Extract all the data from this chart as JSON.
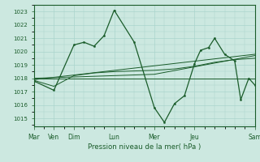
{
  "xlabel": "Pression niveau de la mer( hPa )",
  "background_color": "#cce8e0",
  "grid_color": "#aad4cc",
  "line_color": "#1a5c2a",
  "ylim": [
    1014.4,
    1023.5
  ],
  "yticks": [
    1015,
    1016,
    1017,
    1018,
    1019,
    1020,
    1021,
    1022,
    1023
  ],
  "xlim": [
    0,
    11
  ],
  "tick_major_positions": [
    0,
    1,
    2,
    4,
    6,
    8,
    11
  ],
  "tick_major_labels": [
    "Mar",
    "Ven",
    "Dim",
    "Lun",
    "Mer",
    "Jeu",
    "Sam"
  ],
  "series_main": {
    "x": [
      0,
      1,
      2,
      2.5,
      3.0,
      3.5,
      4.0,
      5.0,
      6.0,
      6.5,
      7.0,
      7.5,
      8.0,
      8.3,
      8.7,
      9.0,
      9.5,
      10.0,
      10.3,
      10.7,
      11.0
    ],
    "y": [
      1017.8,
      1017.1,
      1020.5,
      1020.7,
      1020.4,
      1021.2,
      1023.1,
      1020.7,
      1015.8,
      1014.7,
      1016.1,
      1016.7,
      1019.1,
      1020.1,
      1020.3,
      1021.0,
      1019.8,
      1019.3,
      1016.4,
      1018.0,
      1017.5
    ]
  },
  "series_flat": {
    "x": [
      0,
      11
    ],
    "y": [
      1018.0,
      1018.0
    ]
  },
  "series_trend1": {
    "x": [
      0,
      11
    ],
    "y": [
      1017.9,
      1019.8
    ]
  },
  "series_trend2": {
    "x": [
      0,
      6,
      11
    ],
    "y": [
      1018.0,
      1018.3,
      1019.7
    ]
  },
  "series_smooth": {
    "x": [
      0,
      1,
      2,
      3,
      4,
      5,
      6,
      7,
      8,
      9,
      10,
      11
    ],
    "y": [
      1017.85,
      1017.4,
      1018.2,
      1018.4,
      1018.5,
      1018.55,
      1018.6,
      1018.7,
      1018.9,
      1019.2,
      1019.4,
      1019.5
    ]
  }
}
